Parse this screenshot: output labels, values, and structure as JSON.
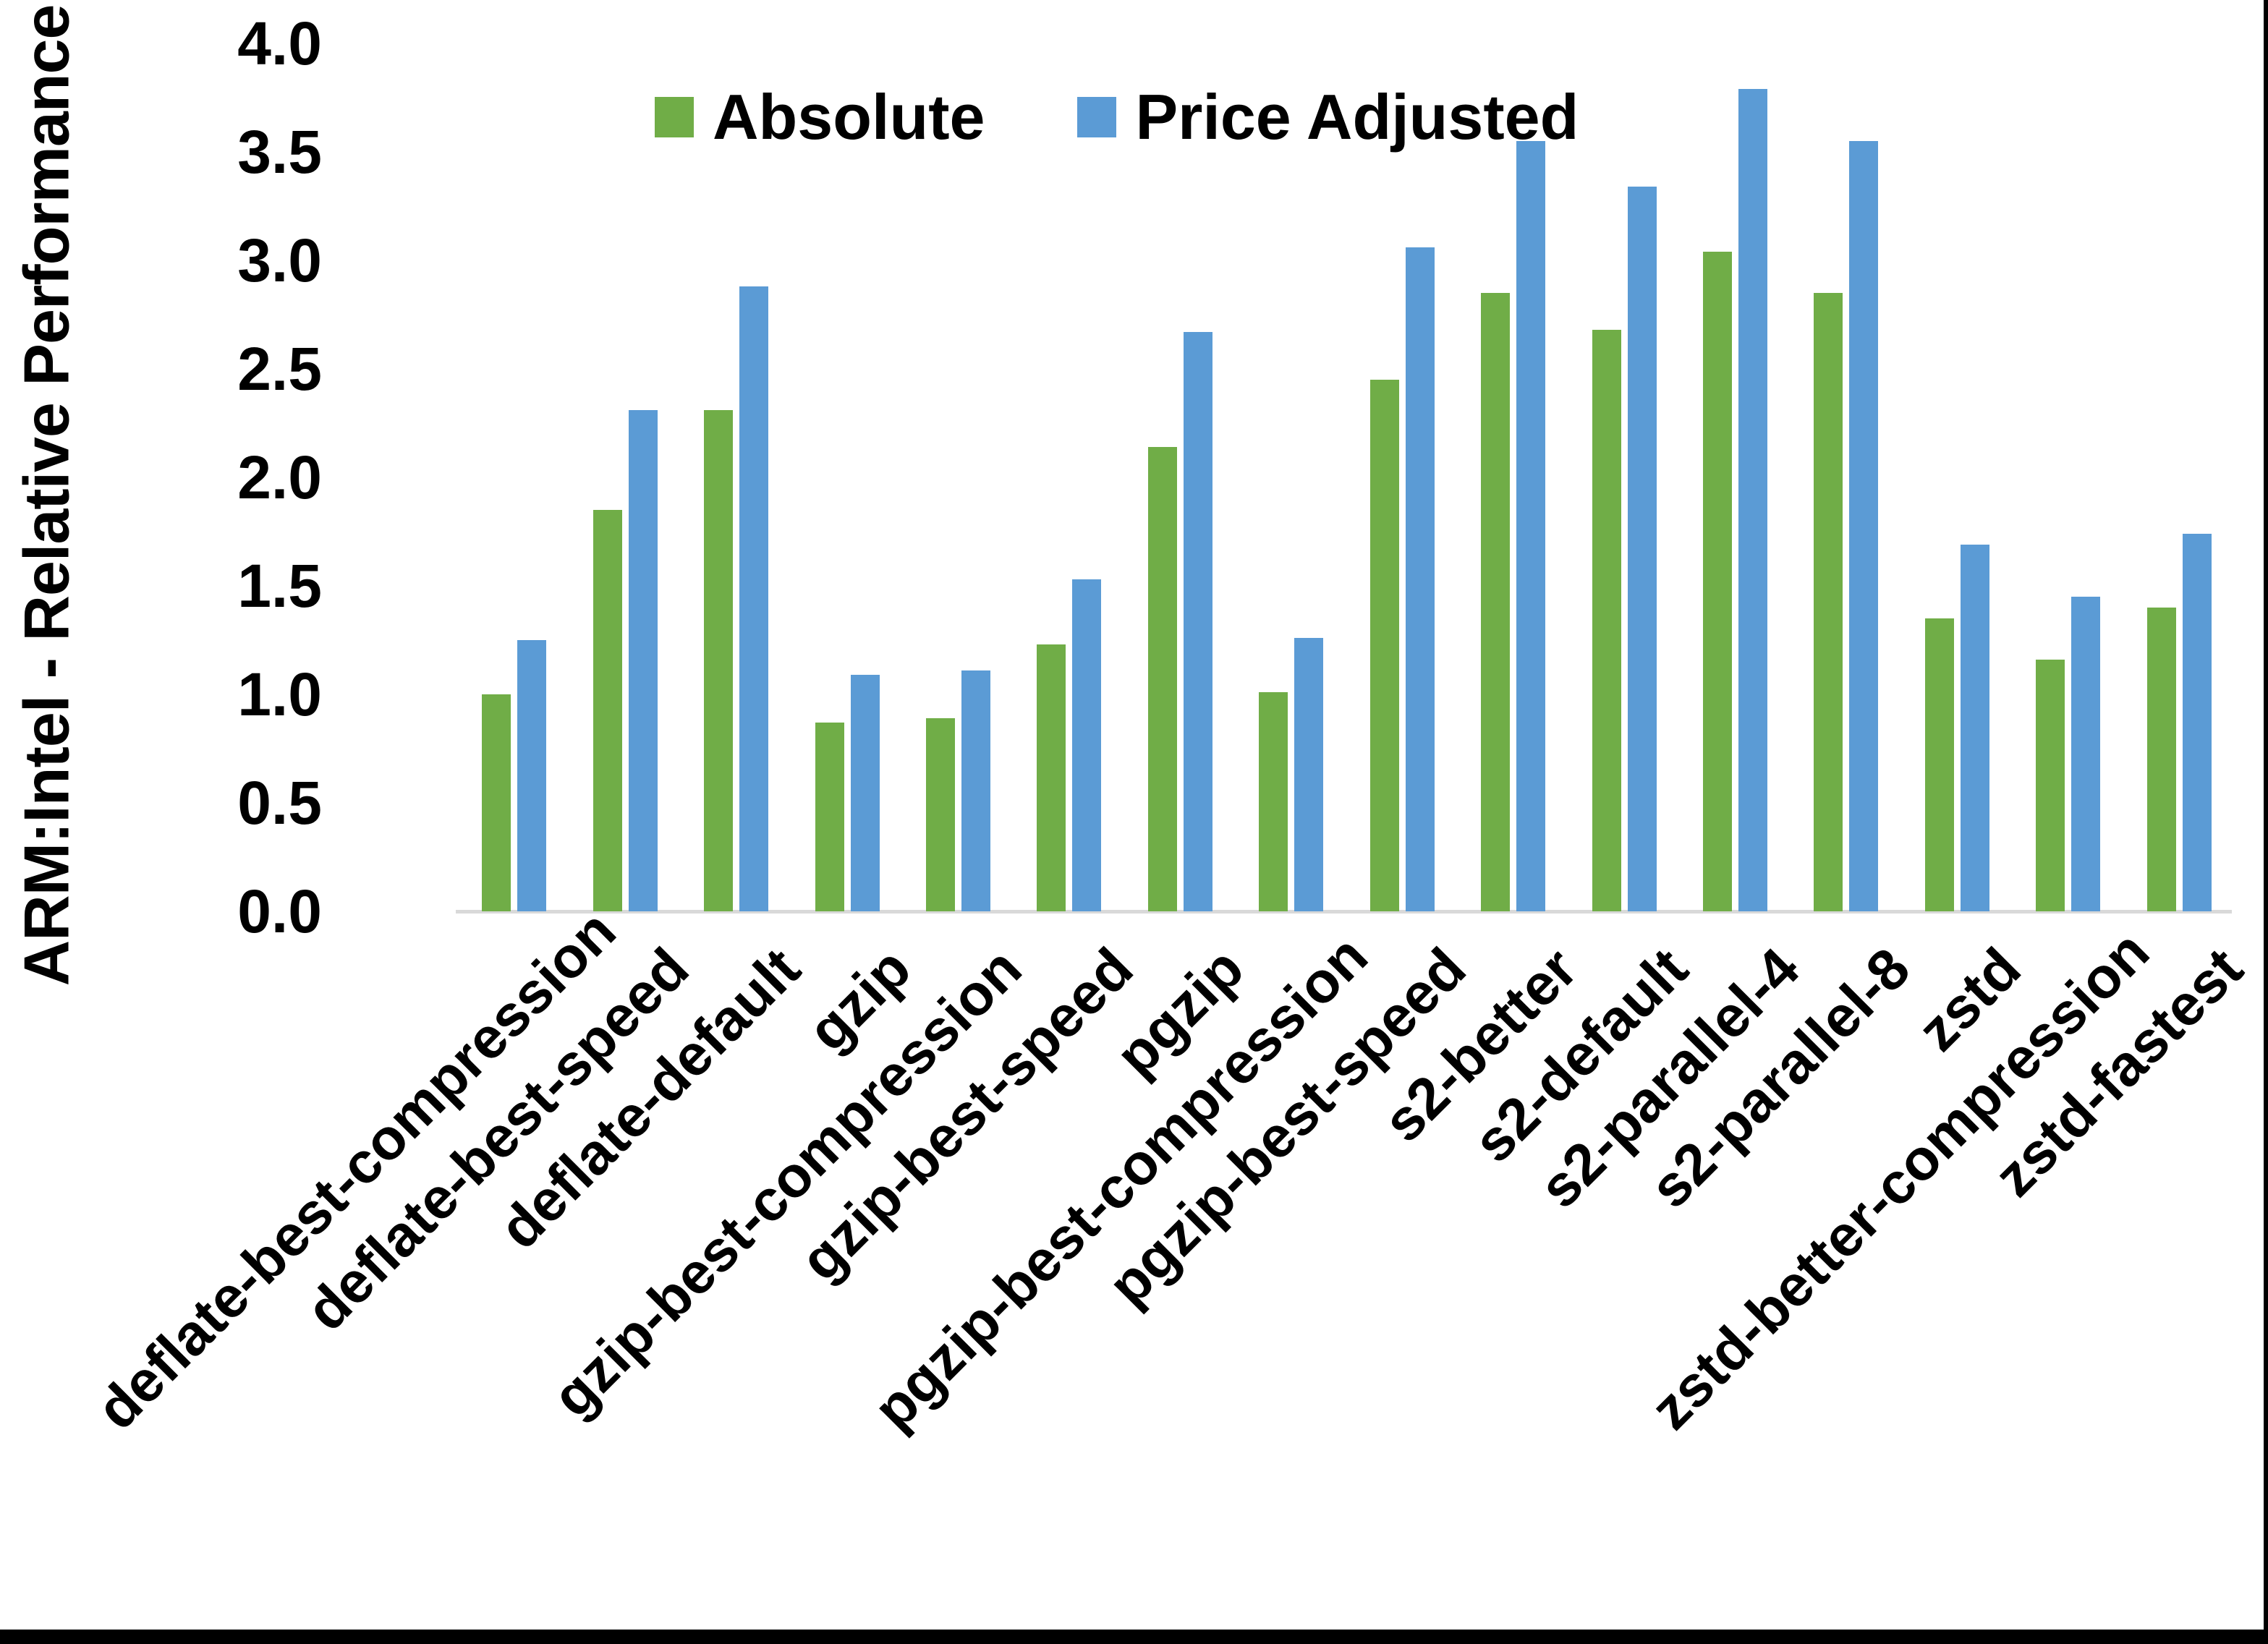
{
  "chart_data": {
    "type": "bar",
    "title": "",
    "ylabel": "ARM:Intel - Relative Performance",
    "xlabel": "",
    "ylim": [
      0.0,
      4.0
    ],
    "ytick_step": 0.5,
    "ytick_labels": [
      "0.0",
      "0.5",
      "1.0",
      "1.5",
      "2.0",
      "2.5",
      "3.0",
      "3.5",
      "4.0"
    ],
    "grid": false,
    "legend_position": "top-center",
    "categories": [
      "deflate-best-compression",
      "deflate-best-speed",
      "deflate-default",
      "gzip",
      "gzip-best-compression",
      "gzip-best-speed",
      "pgzip",
      "pgzip-best-compression",
      "pgzip-best-speed",
      "s2-better",
      "s2-default",
      "s2-parallel-4",
      "s2-parallel-8",
      "zstd",
      "zstd-better-compression",
      "zstd-fastest"
    ],
    "series": [
      {
        "name": "Absolute",
        "color": "#70AD47",
        "values": [
          1.0,
          1.85,
          2.31,
          0.87,
          0.89,
          1.23,
          2.14,
          1.01,
          2.45,
          2.85,
          2.68,
          3.04,
          2.85,
          1.35,
          1.16,
          1.4
        ]
      },
      {
        "name": "Price Adjusted",
        "color": "#5B9BD5",
        "values": [
          1.25,
          2.31,
          2.88,
          1.09,
          1.11,
          1.53,
          2.67,
          1.26,
          3.06,
          3.55,
          3.34,
          3.79,
          3.55,
          1.69,
          1.45,
          1.74
        ]
      }
    ],
    "axis_line_color": "#D9D9D9",
    "frame_color": "#000000"
  }
}
